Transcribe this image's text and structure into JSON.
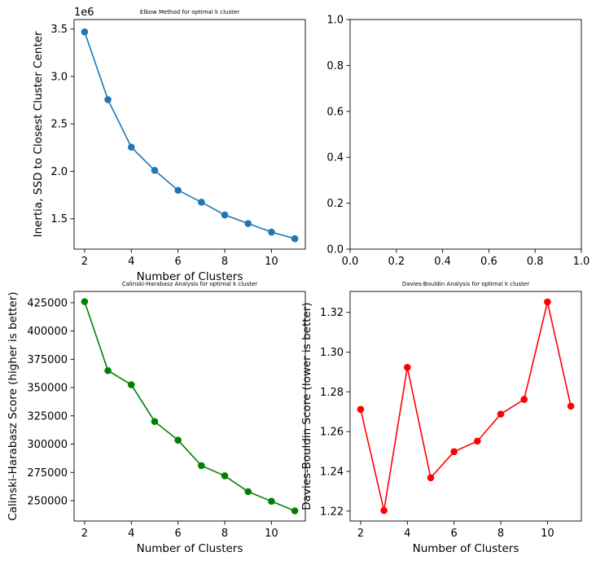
{
  "chart_data": [
    {
      "type": "line",
      "title": "Elbow Method for optimal k cluster",
      "xlabel": "Number of Clusters",
      "ylabel": "Inertia, SSD to Closest Cluster Center",
      "y_offset_label": "1e6",
      "color": "#1f77b4",
      "x": [
        2,
        3,
        4,
        5,
        6,
        7,
        8,
        9,
        10,
        11
      ],
      "values": [
        3470000,
        2755000,
        2255000,
        2010000,
        1800000,
        1675000,
        1540000,
        1450000,
        1360000,
        1290000
      ],
      "xlim": [
        1.55,
        11.45
      ],
      "ylim": [
        1180000,
        3600000
      ],
      "xticks": [
        2,
        4,
        6,
        8,
        10
      ],
      "xtick_labels": [
        "2",
        "4",
        "6",
        "8",
        "10"
      ],
      "yticks": [
        1500000,
        2000000,
        2500000,
        3000000,
        3500000
      ],
      "ytick_labels": [
        "1.5",
        "2.0",
        "2.5",
        "3.0",
        "3.5"
      ]
    },
    {
      "type": "line",
      "title": "",
      "xlabel": "",
      "ylabel": "",
      "color": "#1f77b4",
      "x": [],
      "values": [],
      "xlim": [
        0,
        1
      ],
      "ylim": [
        0,
        1
      ],
      "xticks": [
        0,
        0.2,
        0.4,
        0.6,
        0.8,
        1.0
      ],
      "xtick_labels": [
        "0.0",
        "0.2",
        "0.4",
        "0.6",
        "0.8",
        "1.0"
      ],
      "yticks": [
        0,
        0.2,
        0.4,
        0.6,
        0.8,
        1.0
      ],
      "ytick_labels": [
        "0.0",
        "0.2",
        "0.4",
        "0.6",
        "0.8",
        "1.0"
      ]
    },
    {
      "type": "line",
      "title": "Calinski-Harabasz Analysis for optimal k cluster",
      "xlabel": "Number of Clusters",
      "ylabel": "Calinski-Harabasz Score (higher is better)",
      "color": "#008000",
      "x": [
        2,
        3,
        4,
        5,
        6,
        7,
        8,
        9,
        10,
        11
      ],
      "values": [
        426000,
        365000,
        352500,
        320000,
        303500,
        281000,
        272000,
        258000,
        249500,
        241000
      ],
      "xlim": [
        1.55,
        11.45
      ],
      "ylim": [
        232000,
        435000
      ],
      "xticks": [
        2,
        4,
        6,
        8,
        10
      ],
      "xtick_labels": [
        "2",
        "4",
        "6",
        "8",
        "10"
      ],
      "yticks": [
        250000,
        275000,
        300000,
        325000,
        350000,
        375000,
        400000,
        425000
      ],
      "ytick_labels": [
        "250000",
        "275000",
        "300000",
        "325000",
        "350000",
        "375000",
        "400000",
        "425000"
      ]
    },
    {
      "type": "line",
      "title": "Davies-Bouldin Analysis for optimal k cluster",
      "xlabel": "Number of Clusters",
      "ylabel": "Davies-Bouldin Score (lower is better)",
      "color": "#ff0000",
      "x": [
        2,
        3,
        4,
        5,
        6,
        7,
        8,
        9,
        10,
        11
      ],
      "values": [
        1.2712,
        1.2203,
        1.2923,
        1.2368,
        1.2499,
        1.2552,
        1.2688,
        1.2762,
        1.3252,
        1.2728
      ],
      "xlim": [
        1.55,
        11.45
      ],
      "ylim": [
        1.215,
        1.3305
      ],
      "xticks": [
        2,
        4,
        6,
        8,
        10
      ],
      "xtick_labels": [
        "2",
        "4",
        "6",
        "8",
        "10"
      ],
      "yticks": [
        1.22,
        1.24,
        1.26,
        1.28,
        1.3,
        1.32
      ],
      "ytick_labels": [
        "1.22",
        "1.24",
        "1.26",
        "1.28",
        "1.30",
        "1.32"
      ]
    }
  ]
}
